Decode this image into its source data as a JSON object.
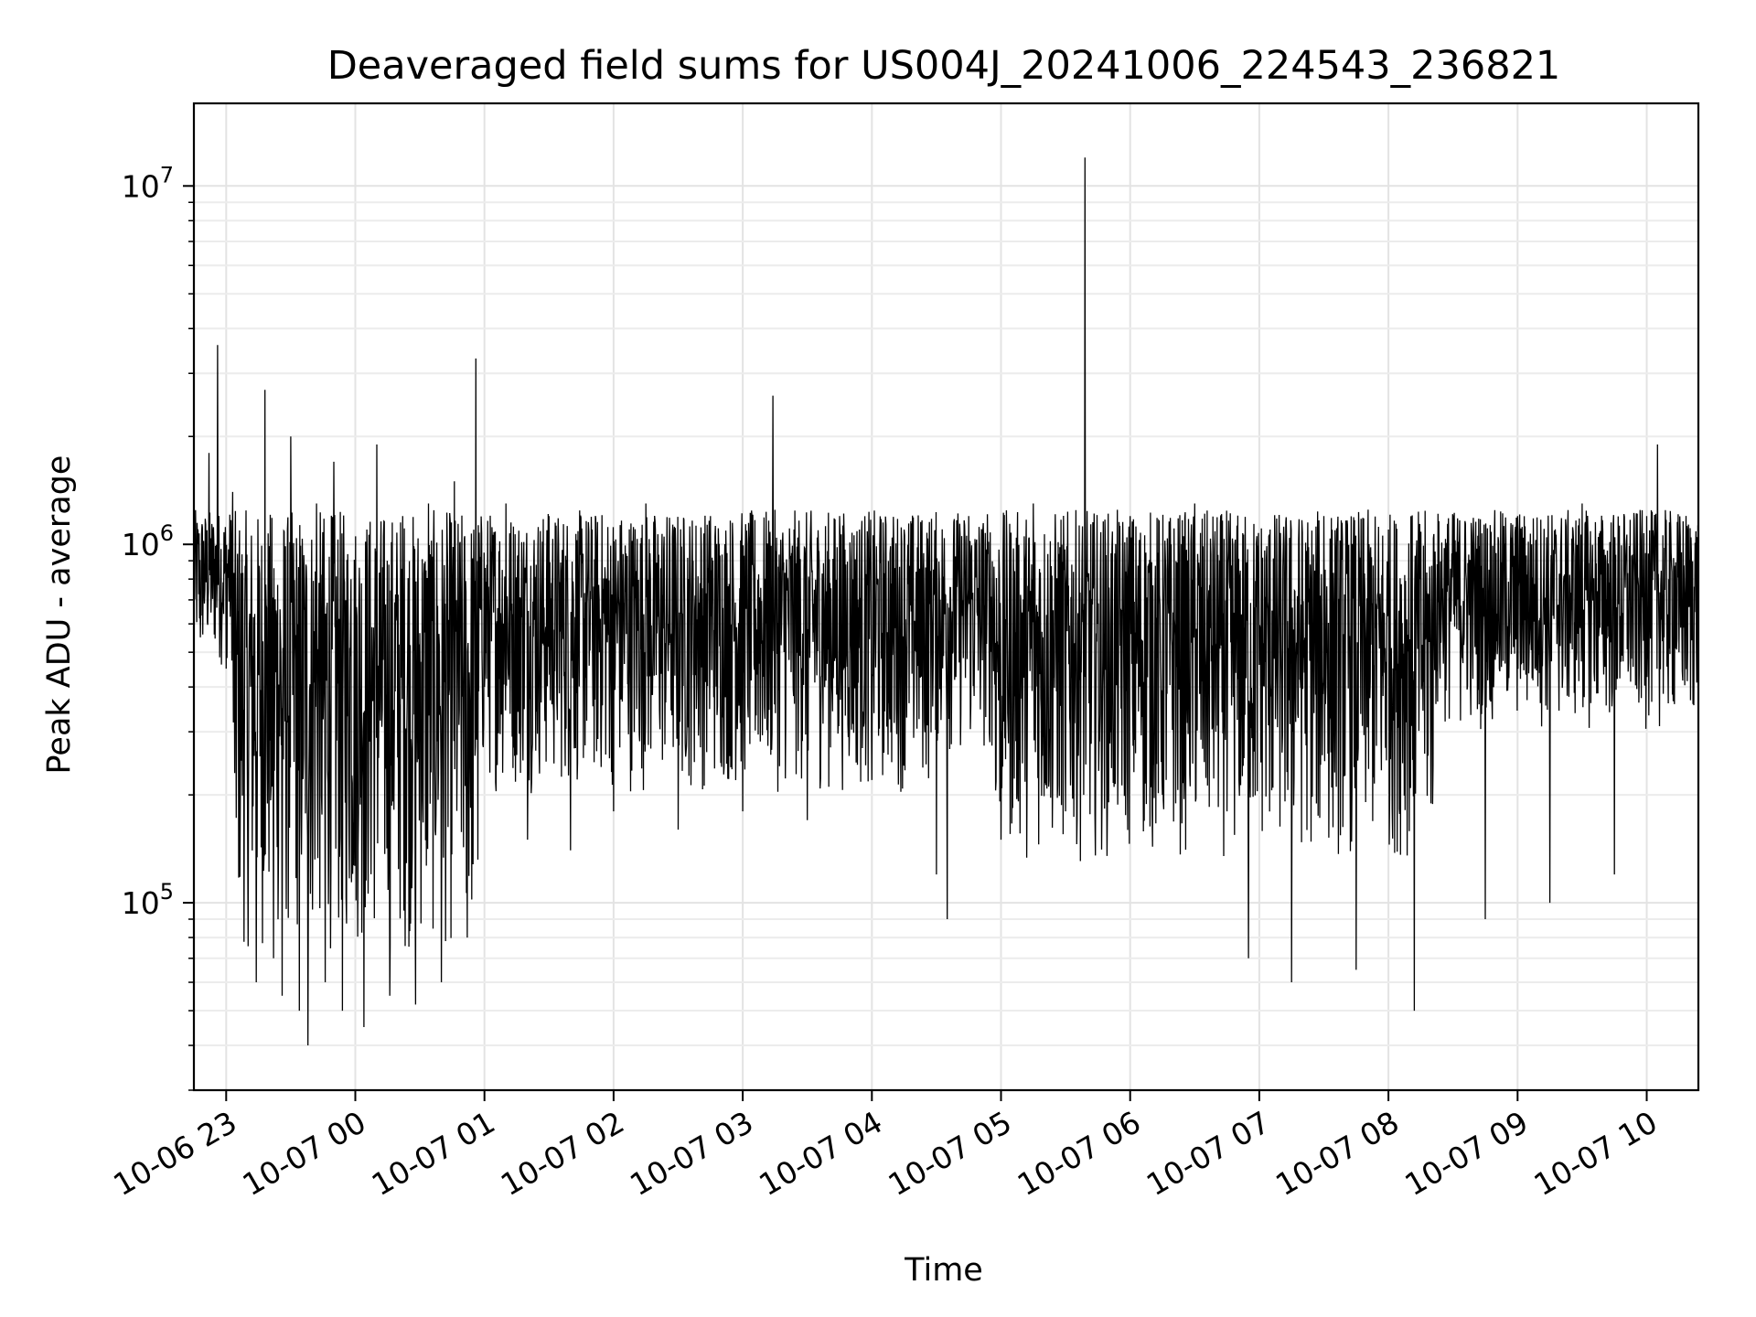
{
  "chart_data": {
    "type": "line",
    "title": "Deaveraged field sums for US004J_20241006_224543_236821",
    "xlabel": "Time",
    "ylabel": "Peak ADU - average",
    "x_axis_type": "datetime",
    "x_range": [
      "2024-10-06 22:45",
      "2024-10-07 10:24"
    ],
    "x_tick_labels": [
      "10-06 23",
      "10-07 00",
      "10-07 01",
      "10-07 02",
      "10-07 03",
      "10-07 04",
      "10-07 05",
      "10-07 06",
      "10-07 07",
      "10-07 08",
      "10-07 09",
      "10-07 10"
    ],
    "y_scale": "log",
    "ylim": [
      30000,
      17000000
    ],
    "y_tick_labels": [
      {
        "base": "10",
        "exp": "5"
      },
      {
        "base": "10",
        "exp": "6"
      },
      {
        "base": "10",
        "exp": "7"
      }
    ],
    "grid": "major and minor",
    "line_color": "#000000",
    "series": [
      {
        "x": [
          "2024-10-06 22:45",
          "2024-10-06 22:48",
          "2024-10-06 22:52",
          "2024-10-06 22:56",
          "2024-10-06 22:58",
          "2024-10-06 23:00",
          "2024-10-06 23:03",
          "2024-10-06 23:06",
          "2024-10-06 23:10",
          "2024-10-06 23:14",
          "2024-10-06 23:18",
          "2024-10-06 23:22",
          "2024-10-06 23:26",
          "2024-10-06 23:30",
          "2024-10-06 23:34",
          "2024-10-06 23:38",
          "2024-10-06 23:42",
          "2024-10-06 23:46",
          "2024-10-06 23:50",
          "2024-10-06 23:54",
          "2024-10-06 23:58",
          "2024-10-07 00:04",
          "2024-10-07 00:10",
          "2024-10-07 00:16",
          "2024-10-07 00:22",
          "2024-10-07 00:28",
          "2024-10-07 00:34",
          "2024-10-07 00:40",
          "2024-10-07 00:46",
          "2024-10-07 00:52",
          "2024-10-07 00:56",
          "2024-10-07 01:00",
          "2024-10-07 01:10",
          "2024-10-07 01:20",
          "2024-10-07 01:30",
          "2024-10-07 01:40",
          "2024-10-07 01:50",
          "2024-10-07 02:00",
          "2024-10-07 02:15",
          "2024-10-07 02:30",
          "2024-10-07 02:45",
          "2024-10-07 03:00",
          "2024-10-07 03:14",
          "2024-10-07 03:30",
          "2024-10-07 03:45",
          "2024-10-07 04:00",
          "2024-10-07 04:15",
          "2024-10-07 04:30",
          "2024-10-07 04:35",
          "2024-10-07 04:45",
          "2024-10-07 05:00",
          "2024-10-07 05:15",
          "2024-10-07 05:30",
          "2024-10-07 05:39",
          "2024-10-07 05:45",
          "2024-10-07 06:00",
          "2024-10-07 06:15",
          "2024-10-07 06:30",
          "2024-10-07 06:45",
          "2024-10-07 06:55",
          "2024-10-07 07:05",
          "2024-10-07 07:15",
          "2024-10-07 07:30",
          "2024-10-07 07:45",
          "2024-10-07 08:00",
          "2024-10-07 08:12",
          "2024-10-07 08:30",
          "2024-10-07 08:45",
          "2024-10-07 09:00",
          "2024-10-07 09:15",
          "2024-10-07 09:30",
          "2024-10-07 09:45",
          "2024-10-07 10:00",
          "2024-10-07 10:05",
          "2024-10-07 10:15",
          "2024-10-07 10:24"
        ],
        "y": [
          500000,
          550000,
          1800000,
          3600000,
          600000,
          450000,
          1400000,
          900000,
          150000,
          60000,
          2700000,
          70000,
          55000,
          2000000,
          50000,
          40000,
          1300000,
          60000,
          1700000,
          50000,
          800000,
          45000,
          1900000,
          55000,
          1200000,
          52000,
          1300000,
          60000,
          1500000,
          80000,
          3300000,
          400000,
          1300000,
          150000,
          1200000,
          140000,
          1100000,
          180000,
          1300000,
          160000,
          1200000,
          180000,
          2600000,
          170000,
          1200000,
          220000,
          1100000,
          120000,
          90000,
          1200000,
          150000,
          1300000,
          180000,
          12000000,
          600000,
          1200000,
          200000,
          1300000,
          180000,
          70000,
          1100000,
          60000,
          1200000,
          65000,
          1100000,
          50000,
          1200000,
          90000,
          1200000,
          100000,
          1300000,
          120000,
          1200000,
          1900000,
          500000,
          250000
        ]
      }
    ]
  }
}
